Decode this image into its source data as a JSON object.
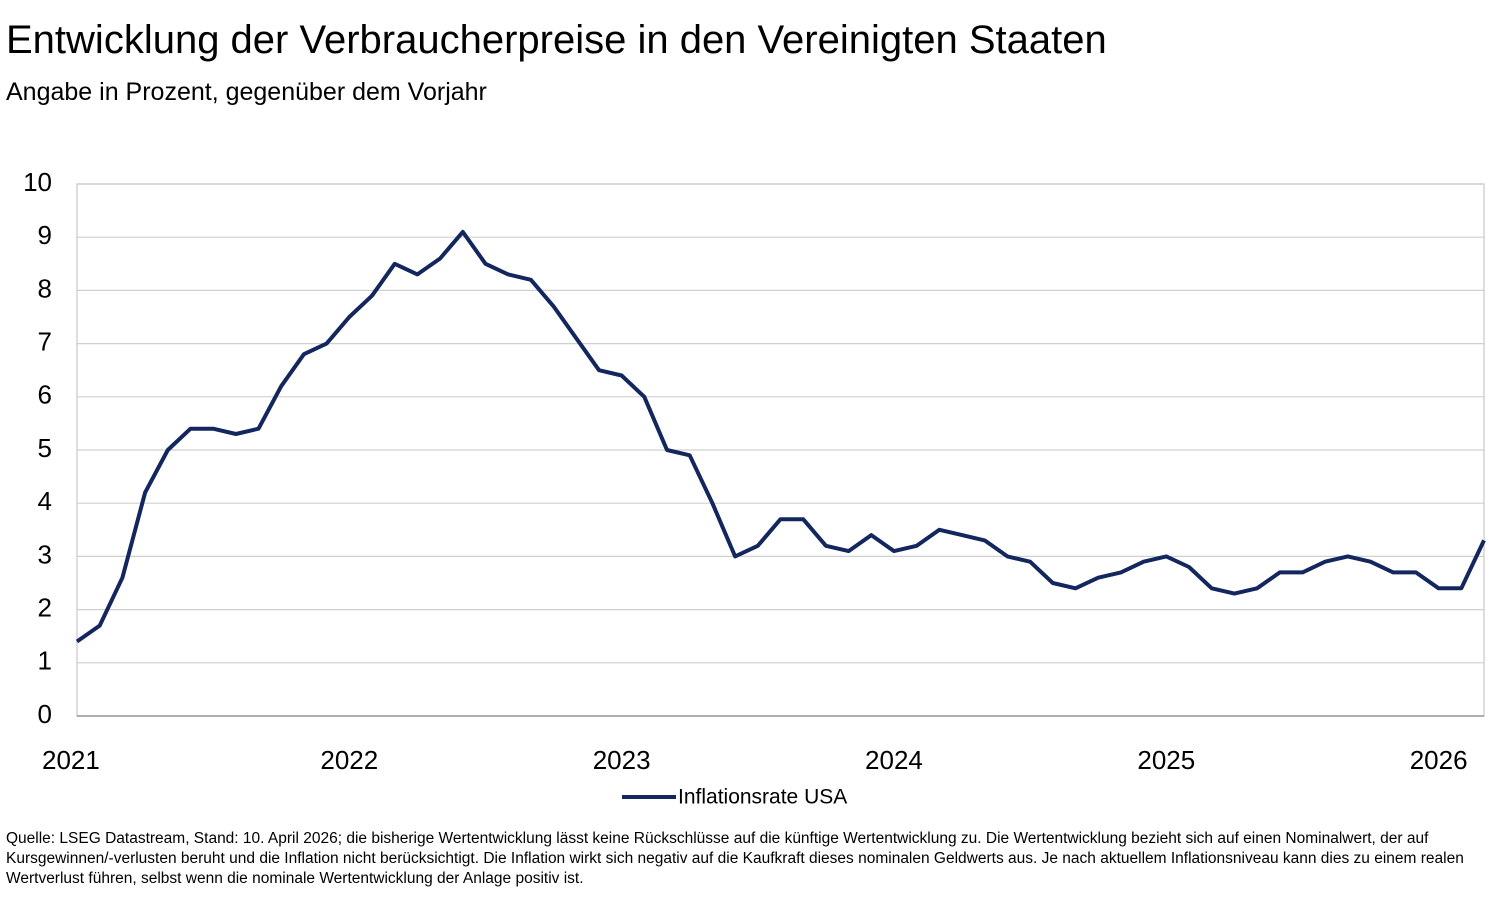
{
  "chart_data": {
    "type": "line",
    "title": "Entwicklung der Verbraucherpreise in den Vereinigten Staaten",
    "subtitle": "Angabe in Prozent, gegenüber dem Vorjahr",
    "note": "Quelle: LSEG Datastream, Stand: 10. April 2026; die bisherige Wertentwicklung lässt keine Rückschlüsse auf die künftige Wertentwicklung zu. Die Wertentwicklung bezieht sich auf einen Nominalwert, der auf Kursgewinnen/-verlusten beruht und die Inflation nicht berücksichtigt. Die Inflation wirkt sich negativ auf die Kaufkraft dieses nominalen Geldwerts aus. Je nach aktuellem Inflationsniveau kann dies zu einem realen Wertverlust führen, selbst wenn die nominale Wertentwicklung der Anlage positiv ist.",
    "categories": [
      "2021",
      null,
      null,
      null,
      null,
      null,
      null,
      null,
      null,
      null,
      null,
      null,
      "2022",
      null,
      null,
      null,
      null,
      null,
      null,
      null,
      null,
      null,
      null,
      null,
      "2023",
      null,
      null,
      null,
      null,
      null,
      null,
      null,
      null,
      null,
      null,
      null,
      "2024",
      null,
      null,
      null,
      null,
      null,
      null,
      null,
      null,
      null,
      null,
      null,
      "2025",
      null,
      null,
      null,
      null,
      null,
      null,
      null,
      null,
      null,
      null,
      null,
      "2026",
      null,
      null
    ],
    "series": [
      {
        "name": "Inflationsrate USA",
        "color": "#13275e",
        "values": [
          1.4,
          1.7,
          2.6,
          4.2,
          5.0,
          5.4,
          5.4,
          5.3,
          5.4,
          6.2,
          6.8,
          7.0,
          7.5,
          7.9,
          8.5,
          8.3,
          8.6,
          9.1,
          8.5,
          8.3,
          8.2,
          7.7,
          7.1,
          6.5,
          6.4,
          6.0,
          5.0,
          4.9,
          4.0,
          3.0,
          3.2,
          3.7,
          3.7,
          3.2,
          3.1,
          3.4,
          3.1,
          3.2,
          3.5,
          3.4,
          3.3,
          3.0,
          2.9,
          2.5,
          2.4,
          2.6,
          2.7,
          2.9,
          3.0,
          2.8,
          2.4,
          2.3,
          2.4,
          2.7,
          2.7,
          2.9,
          3.0,
          2.9,
          2.7,
          2.7,
          2.4,
          2.4,
          3.3
        ]
      }
    ],
    "ylim": [
      0,
      10
    ],
    "yticks": [
      0,
      1,
      2,
      3,
      4,
      5,
      6,
      7,
      8,
      9,
      10
    ],
    "grid": true
  }
}
